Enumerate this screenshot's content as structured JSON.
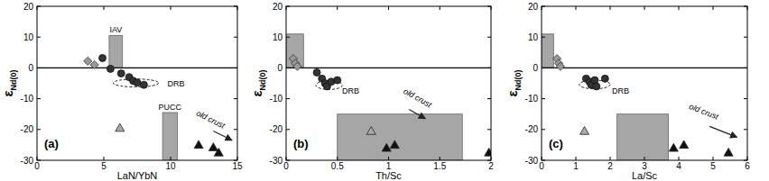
{
  "chart_data": [
    {
      "type": "scatter",
      "panel_label": "(a)",
      "xlabel": "LaN/YbN",
      "ylabel": "εNd(0)",
      "xlim": [
        0,
        15
      ],
      "ylim": [
        -30,
        20
      ],
      "xticks": [
        0,
        5,
        10,
        15
      ],
      "yticks": [
        -30,
        -20,
        -10,
        0,
        10,
        20
      ],
      "grid": false,
      "hlines": [
        0
      ],
      "regions": [
        {
          "label": "IAV",
          "x": [
            5.4,
            6.4
          ],
          "y": [
            0,
            10.5
          ]
        },
        {
          "label": "PUCC",
          "x": [
            9.4,
            10.5
          ],
          "y": [
            -30,
            -14.5
          ]
        }
      ],
      "ellipses": [
        {
          "label": "DRB",
          "center": [
            7.4,
            -4.9
          ],
          "radii": [
            1.7,
            1.3
          ],
          "label_at": [
            10.4,
            -5
          ]
        }
      ],
      "annotations": [
        {
          "text": "old crust",
          "x": 12.9,
          "y": -17.5,
          "arrow": [
            [
              13.2,
              -20.5
            ],
            [
              14.6,
              -23.5
            ]
          ]
        }
      ],
      "series": [
        {
          "marker": "circle",
          "color": "#333333",
          "x": [
            4.9,
            5.5,
            6.3,
            6.9,
            7.2,
            7.5,
            8.0
          ],
          "values": [
            3.2,
            -0.3,
            -1.8,
            -3.0,
            -4.2,
            -4.8,
            -5.5
          ]
        },
        {
          "marker": "diamond",
          "color": "#999999",
          "x": [
            3.8,
            4.3
          ],
          "values": [
            2.2,
            1.0
          ]
        },
        {
          "marker": "triangle",
          "color": "#111111",
          "x": [
            12.1,
            13.2,
            13.6
          ],
          "values": [
            -25,
            -25.8,
            -27.5
          ]
        },
        {
          "marker": "triangle",
          "color": "#aaaaaa",
          "x": [
            6.2
          ],
          "values": [
            -19.5
          ]
        }
      ]
    },
    {
      "type": "scatter",
      "panel_label": "(b)",
      "xlabel": "Th/Sc",
      "ylabel": "εNd(0)",
      "xlim": [
        0,
        2
      ],
      "ylim": [
        -30,
        20
      ],
      "xticks": [
        0,
        0.5,
        1,
        1.5,
        2
      ],
      "yticks": [
        -30,
        -20,
        -10,
        0,
        10,
        20
      ],
      "grid": false,
      "hlines": [
        0
      ],
      "regions": [
        {
          "x": [
            0,
            0.17
          ],
          "y": [
            0,
            11
          ]
        },
        {
          "x": [
            0.5,
            1.72
          ],
          "y": [
            -30,
            -15
          ]
        }
      ],
      "ellipses": [
        {
          "label": "DRB",
          "center": [
            0.42,
            -5.6
          ],
          "radii": [
            0.13,
            1.4
          ],
          "label_at": [
            0.63,
            -7.5
          ]
        }
      ],
      "annotations": [
        {
          "text": "old crust",
          "x": 1.27,
          "y": -10.5,
          "arrow": [
            [
              1.2,
              -13.5
            ],
            [
              1.36,
              -16.5
            ]
          ]
        }
      ],
      "series": [
        {
          "marker": "circle",
          "color": "#333333",
          "x": [
            0.3,
            0.35,
            0.38,
            0.4,
            0.44,
            0.5
          ],
          "values": [
            -1.5,
            -3.5,
            -5,
            -6,
            -4.5,
            -4
          ]
        },
        {
          "marker": "diamond",
          "color": "#999999",
          "x": [
            0.07,
            0.09,
            0.11
          ],
          "values": [
            3,
            1.5,
            0.5
          ]
        },
        {
          "marker": "triangle",
          "color": "#111111",
          "x": [
            0.98,
            1.06,
            1.98
          ],
          "values": [
            -26,
            -25,
            -27.5
          ]
        },
        {
          "marker": "triangle",
          "color": "#aaaaaa",
          "x": [
            0.83
          ],
          "values": [
            -20.5
          ]
        }
      ]
    },
    {
      "type": "scatter",
      "panel_label": "(c)",
      "xlabel": "La/Sc",
      "ylabel": "εNd(0)",
      "xlim": [
        0,
        6
      ],
      "ylim": [
        -30,
        20
      ],
      "xticks": [
        0,
        1,
        2,
        3,
        4,
        5,
        6
      ],
      "yticks": [
        -30,
        -20,
        -10,
        0,
        10,
        20
      ],
      "grid": false,
      "hlines": [
        0
      ],
      "regions": [
        {
          "x": [
            0,
            0.35
          ],
          "y": [
            0,
            11
          ]
        },
        {
          "x": [
            2.2,
            3.7
          ],
          "y": [
            -30,
            -15
          ]
        }
      ],
      "ellipses": [
        {
          "label": "DRB",
          "center": [
            1.55,
            -5.4
          ],
          "radii": [
            0.45,
            1.4
          ],
          "label_at": [
            2.3,
            -7.5
          ]
        }
      ],
      "annotations": [
        {
          "text": "old crust",
          "x": 4.7,
          "y": -15,
          "arrow": [
            [
              4.9,
              -19
            ],
            [
              5.7,
              -22.5
            ]
          ]
        }
      ],
      "series": [
        {
          "marker": "circle",
          "color": "#333333",
          "x": [
            1.3,
            1.4,
            1.45,
            1.55,
            1.6,
            1.85
          ],
          "values": [
            -3.5,
            -4.5,
            -5.5,
            -4,
            -6,
            -3.5
          ]
        },
        {
          "marker": "diamond",
          "color": "#999999",
          "x": [
            0.45,
            0.5,
            0.55
          ],
          "values": [
            3,
            1.5,
            0.5
          ]
        },
        {
          "marker": "triangle",
          "color": "#111111",
          "x": [
            3.85,
            4.15,
            5.45
          ],
          "values": [
            -26,
            -25,
            -27.5
          ]
        },
        {
          "marker": "triangle",
          "color": "#aaaaaa",
          "x": [
            1.25
          ],
          "values": [
            -20.5
          ]
        }
      ]
    }
  ]
}
